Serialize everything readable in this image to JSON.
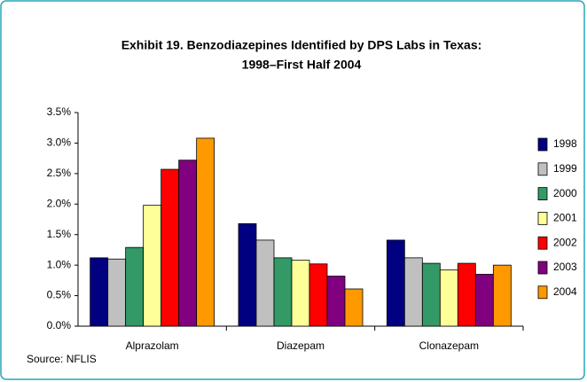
{
  "chart_data": {
    "type": "bar",
    "title": [
      "Exhibit 19. Benzodiazepines Identified by DPS Labs in Texas:",
      "1998–First Half 2004"
    ],
    "source": "Source: NFLIS",
    "categories": [
      "Alprazolam",
      "Diazepam",
      "Clonazepam"
    ],
    "series": [
      {
        "name": "1998",
        "color": "#000080",
        "values": [
          1.12,
          1.68,
          1.41
        ]
      },
      {
        "name": "1999",
        "color": "#c0c0c0",
        "values": [
          1.1,
          1.41,
          1.12
        ]
      },
      {
        "name": "2000",
        "color": "#339966",
        "values": [
          1.29,
          1.12,
          1.03
        ]
      },
      {
        "name": "2001",
        "color": "#ffff99",
        "values": [
          1.98,
          1.08,
          0.92
        ]
      },
      {
        "name": "2002",
        "color": "#ff0000",
        "values": [
          2.57,
          1.02,
          1.03
        ]
      },
      {
        "name": "2003",
        "color": "#800080",
        "values": [
          2.72,
          0.82,
          0.85
        ]
      },
      {
        "name": "2004",
        "color": "#ff9900",
        "values": [
          3.08,
          0.61,
          1.0
        ]
      }
    ],
    "ylim": [
      0,
      3.5
    ],
    "yticks": [
      {
        "value": 0,
        "label": "0.0%"
      },
      {
        "value": 0.5,
        "label": "0.5%"
      },
      {
        "value": 1,
        "label": "1.0%"
      },
      {
        "value": 1.5,
        "label": "1.5%"
      },
      {
        "value": 2,
        "label": "2.0%"
      },
      {
        "value": 2.5,
        "label": "2.5%"
      },
      {
        "value": 3,
        "label": "3.0%"
      },
      {
        "value": 3.5,
        "label": "3.5%"
      }
    ],
    "grid": false,
    "legend": "right"
  }
}
